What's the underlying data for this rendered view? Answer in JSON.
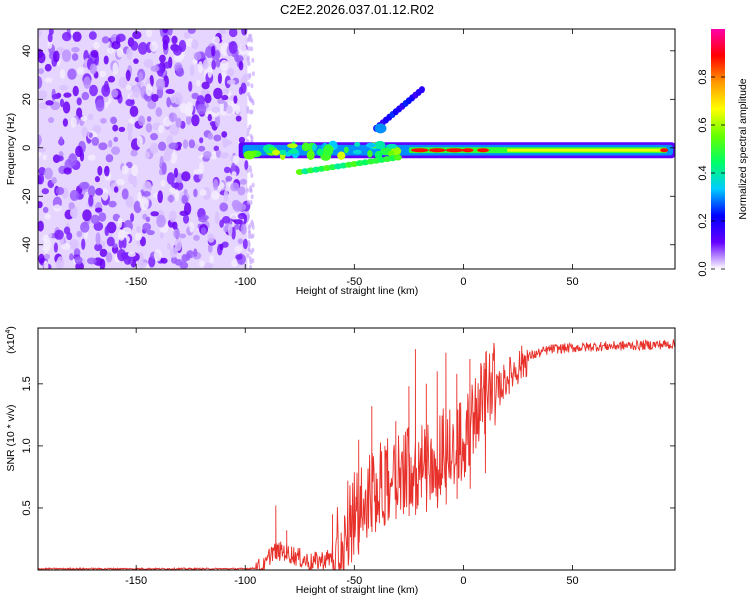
{
  "title": "C2E2.2026.037.01.12.R02",
  "chart_data": [
    {
      "type": "heatmap",
      "name": "spectrogram",
      "xlabel": "Height of straight line (km)",
      "ylabel": "Frequency (Hz)",
      "xlim": [
        -195,
        97
      ],
      "ylim": [
        -50,
        49
      ],
      "xticks": [
        -150,
        -100,
        -50,
        0,
        50
      ],
      "yticks": [
        -40,
        -20,
        0,
        20,
        40
      ],
      "colorbar": {
        "label": "Normalized spectral amplitude",
        "range": [
          0,
          1
        ],
        "ticks": [
          "0.0",
          "0.2",
          "0.4",
          "0.6",
          "0.8"
        ],
        "stops": [
          "#ffffff",
          "#6600ff",
          "#0000ff",
          "#00ccff",
          "#00ff66",
          "#66ff00",
          "#ffff00",
          "#ff9900",
          "#ff0000",
          "#ff00aa"
        ]
      },
      "features": [
        {
          "name": "noise-region",
          "x_range": [
            -195,
            -99
          ],
          "freq_range": [
            -50,
            49
          ],
          "amplitude": 0.15
        },
        {
          "name": "main-signal-band",
          "x_range": [
            -103,
            97
          ],
          "freq_center": -1,
          "amplitude": 0.75
        },
        {
          "name": "rising-branch",
          "x_from": -40,
          "x_to": -19,
          "freq_from": 8,
          "freq_to": 24,
          "amplitude": 0.3
        },
        {
          "name": "low-branch",
          "x_from": -75,
          "x_to": -30,
          "freq_from": -10,
          "freq_to": -4,
          "amplitude": 0.45
        }
      ]
    },
    {
      "type": "line",
      "name": "snr",
      "xlabel": "Height of straight line (km)",
      "ylabel": "SNR (10 * v/v)",
      "multiplier": "(x10",
      "multiplier_exp": "4",
      "xlim": [
        -195,
        97
      ],
      "ylim": [
        0,
        1.95
      ],
      "xticks": [
        -150,
        -100,
        -50,
        0,
        50
      ],
      "yticks": [
        "0.5",
        "1.0",
        "1.5"
      ],
      "color": "#e8302a",
      "series": [
        {
          "x": -195,
          "y": 0.01
        },
        {
          "x": -100,
          "y": 0.01
        },
        {
          "x": -91,
          "y": 0.02
        },
        {
          "x": -88,
          "y": 0.15
        },
        {
          "x": -82,
          "y": 0.15
        },
        {
          "x": -70,
          "y": 0.06
        },
        {
          "x": -60,
          "y": 0.1
        },
        {
          "x": -50,
          "y": 0.35
        },
        {
          "x": -40,
          "y": 0.55
        },
        {
          "x": -30,
          "y": 0.7
        },
        {
          "x": -20,
          "y": 0.75
        },
        {
          "x": -10,
          "y": 0.85
        },
        {
          "x": 0,
          "y": 1.0
        },
        {
          "x": 10,
          "y": 1.3
        },
        {
          "x": 20,
          "y": 1.55
        },
        {
          "x": 30,
          "y": 1.72
        },
        {
          "x": 40,
          "y": 1.78
        },
        {
          "x": 60,
          "y": 1.8
        },
        {
          "x": 80,
          "y": 1.81
        },
        {
          "x": 97,
          "y": 1.82
        }
      ],
      "peaks": [
        {
          "x": -86,
          "y": 0.52
        },
        {
          "x": -81,
          "y": 0.32
        },
        {
          "x": -60,
          "y": 0.45
        },
        {
          "x": -53,
          "y": 0.72
        },
        {
          "x": -48,
          "y": 1.05
        },
        {
          "x": -42,
          "y": 1.32
        },
        {
          "x": -36,
          "y": 1.0
        },
        {
          "x": -31,
          "y": 1.2
        },
        {
          "x": -25,
          "y": 1.48
        },
        {
          "x": -22,
          "y": 1.78
        },
        {
          "x": -17,
          "y": 1.5
        },
        {
          "x": -12,
          "y": 1.6
        },
        {
          "x": -8,
          "y": 1.75
        },
        {
          "x": -3,
          "y": 1.58
        },
        {
          "x": 3,
          "y": 1.7
        },
        {
          "x": 10,
          "y": 1.62
        }
      ]
    }
  ]
}
